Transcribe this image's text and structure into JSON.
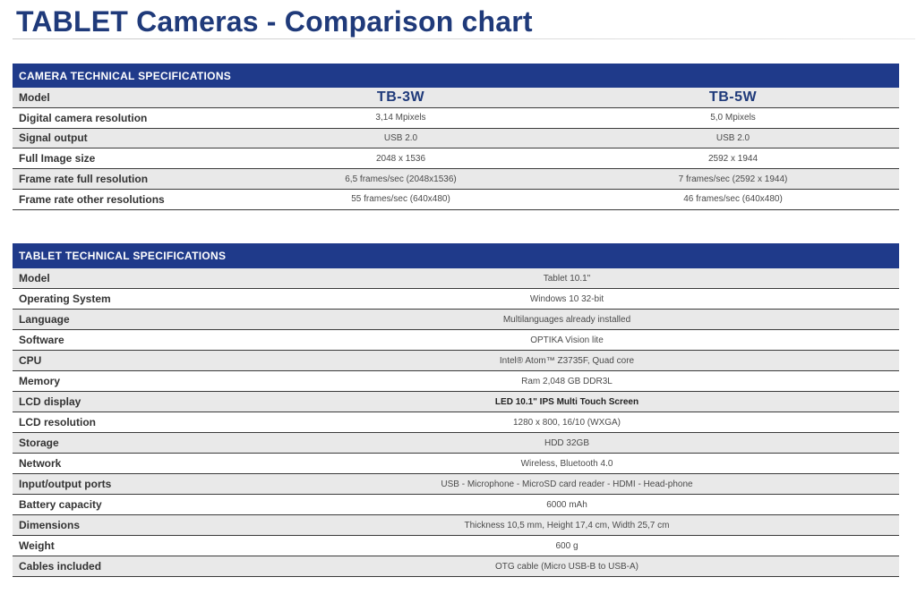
{
  "page_title": "TABLET Cameras - Comparison chart",
  "camera_specs": {
    "header": "CAMERA TECHNICAL SPECIFICATIONS",
    "rows": [
      {
        "label": "Model",
        "tb3w": "TB-3W",
        "tb5w": "TB-5W"
      },
      {
        "label": "Digital camera resolution",
        "tb3w": "3,14 Mpixels",
        "tb5w": "5,0 Mpixels"
      },
      {
        "label": "Signal output",
        "tb3w": "USB 2.0",
        "tb5w": "USB 2.0"
      },
      {
        "label": "Full Image size",
        "tb3w": "2048 x 1536",
        "tb5w": "2592 x 1944"
      },
      {
        "label": "Frame rate full resolution",
        "tb3w": "6,5 frames/sec (2048x1536)",
        "tb5w": "7 frames/sec (2592 x 1944)"
      },
      {
        "label": "Frame rate other resolutions",
        "tb3w": "55 frames/sec (640x480)",
        "tb5w": "46 frames/sec (640x480)"
      }
    ]
  },
  "tablet_specs": {
    "header": "TABLET TECHNICAL SPECIFICATIONS",
    "rows": [
      {
        "label": "Model",
        "value": "Tablet 10.1\""
      },
      {
        "label": "Operating System",
        "value": "Windows 10 32-bit"
      },
      {
        "label": "Language",
        "value": "Multilanguages already installed"
      },
      {
        "label": "Software",
        "value": "OPTIKA Vision lite"
      },
      {
        "label": "CPU",
        "value": "Intel® Atom™ Z3735F, Quad core"
      },
      {
        "label": "Memory",
        "value": "Ram 2,048 GB DDR3L"
      },
      {
        "label": "LCD display",
        "value": "LED 10.1\" IPS Multi Touch Screen"
      },
      {
        "label": "LCD resolution",
        "value": "1280 x 800, 16/10 (WXGA)"
      },
      {
        "label": "Storage",
        "value": "HDD 32GB"
      },
      {
        "label": "Network",
        "value": "Wireless, Bluetooth 4.0"
      },
      {
        "label": "Input/output ports",
        "value": "USB - Microphone - MicroSD card reader - HDMI - Head-phone"
      },
      {
        "label": "Battery capacity",
        "value": "6000 mAh"
      },
      {
        "label": "Dimensions",
        "value": "Thickness 10,5 mm, Height 17,4 cm, Width 25,7 cm"
      },
      {
        "label": "Weight",
        "value": "600 g"
      },
      {
        "label": "Cables included",
        "value": "OTG cable (Micro USB-B to USB-A)"
      }
    ]
  },
  "colors": {
    "header_bg": "#1f3a8a",
    "title": "#1f3a7a",
    "row_shade": "#e9e9e9"
  }
}
